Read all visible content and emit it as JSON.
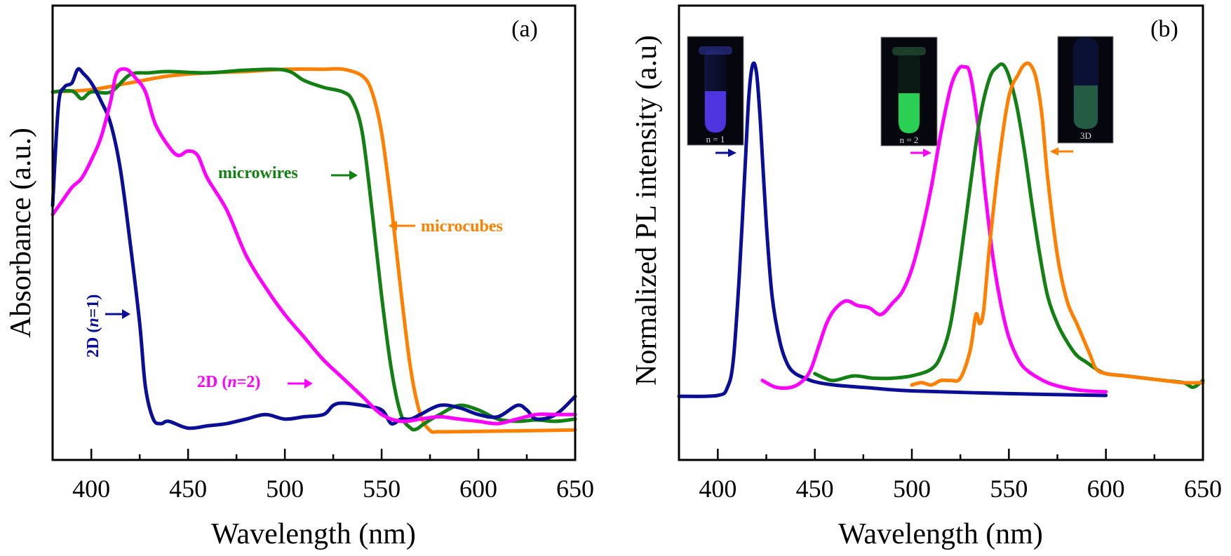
{
  "chart_data": [
    {
      "type": "line",
      "panel_label": "(a)",
      "title": "",
      "xlabel": "Wavelength (nm)",
      "ylabel": "Absorbance (a.u.)",
      "xlim": [
        380,
        650
      ],
      "ylim": [
        0,
        1
      ],
      "xticks": [
        400,
        450,
        500,
        550,
        600,
        650
      ],
      "xticklabels": [
        "400",
        "450",
        "500",
        "550",
        "600",
        "650"
      ],
      "minor_xticks": [
        425,
        475,
        525,
        575,
        625
      ],
      "grid": false,
      "series": [
        {
          "name": "microcubes",
          "color": "#ff8000",
          "x": [
            380,
            400,
            420,
            440,
            460,
            480,
            500,
            520,
            530,
            540,
            545,
            550,
            555,
            560,
            565,
            570,
            575,
            580,
            600,
            620,
            650
          ],
          "y": [
            0.81,
            0.815,
            0.83,
            0.845,
            0.852,
            0.855,
            0.86,
            0.86,
            0.86,
            0.845,
            0.81,
            0.72,
            0.56,
            0.37,
            0.2,
            0.1,
            0.065,
            0.062,
            0.063,
            0.064,
            0.066
          ]
        },
        {
          "name": "microwires",
          "color": "#138013",
          "x": [
            380,
            390,
            395,
            400,
            410,
            420,
            430,
            440,
            460,
            480,
            500,
            510,
            520,
            530,
            535,
            540,
            545,
            550,
            555,
            560,
            565,
            568,
            572,
            580,
            590,
            600,
            610,
            620,
            630,
            640,
            650
          ],
          "y": [
            0.81,
            0.812,
            0.795,
            0.81,
            0.81,
            0.848,
            0.852,
            0.855,
            0.852,
            0.858,
            0.858,
            0.835,
            0.82,
            0.81,
            0.79,
            0.72,
            0.55,
            0.36,
            0.2,
            0.1,
            0.07,
            0.068,
            0.08,
            0.1,
            0.12,
            0.11,
            0.09,
            0.085,
            0.088,
            0.085,
            0.09
          ]
        },
        {
          "name": "2D (n=1)",
          "color": "#0a0f96",
          "x": [
            380,
            383,
            386,
            390,
            393,
            396,
            400,
            405,
            410,
            415,
            420,
            425,
            428,
            432,
            436,
            440,
            450,
            460,
            470,
            480,
            490,
            500,
            510,
            520,
            525,
            530,
            540,
            550,
            555,
            560,
            565,
            570,
            580,
            590,
            600,
            610,
            620,
            625,
            630,
            640,
            650
          ],
          "y": [
            0.56,
            0.78,
            0.82,
            0.83,
            0.86,
            0.85,
            0.83,
            0.79,
            0.74,
            0.64,
            0.48,
            0.3,
            0.16,
            0.09,
            0.08,
            0.085,
            0.07,
            0.075,
            0.08,
            0.09,
            0.1,
            0.09,
            0.095,
            0.1,
            0.12,
            0.125,
            0.12,
            0.11,
            0.08,
            0.09,
            0.09,
            0.1,
            0.12,
            0.115,
            0.1,
            0.095,
            0.12,
            0.11,
            0.09,
            0.1,
            0.14
          ]
        },
        {
          "name": "2D (n=2)",
          "color": "#ff00ff",
          "x": [
            380,
            385,
            390,
            395,
            400,
            405,
            410,
            413,
            418,
            423,
            428,
            433,
            440,
            445,
            450,
            455,
            460,
            470,
            480,
            490,
            500,
            510,
            520,
            530,
            540,
            550,
            560,
            570,
            580,
            590,
            600,
            610,
            620,
            630,
            640,
            650
          ],
          "y": [
            0.54,
            0.57,
            0.6,
            0.62,
            0.66,
            0.71,
            0.79,
            0.85,
            0.86,
            0.84,
            0.81,
            0.74,
            0.69,
            0.67,
            0.68,
            0.67,
            0.62,
            0.55,
            0.45,
            0.38,
            0.32,
            0.27,
            0.22,
            0.18,
            0.14,
            0.1,
            0.085,
            0.09,
            0.095,
            0.09,
            0.085,
            0.08,
            0.09,
            0.1,
            0.1,
            0.1
          ]
        }
      ],
      "annotations": [
        {
          "text": "microwires",
          "color": "#138013",
          "arrow": "right"
        },
        {
          "text": "microcubes",
          "color": "#ff8000",
          "arrow": "left"
        },
        {
          "text_prefix": "2D (",
          "text_italic": "n",
          "text_suffix": "=1)",
          "color": "#0a0f96",
          "arrow": "right",
          "orientation": "vertical"
        },
        {
          "text_prefix": "2D (",
          "text_italic": "n",
          "text_suffix": "=2)",
          "color": "#ff00ff",
          "arrow": "right"
        }
      ]
    },
    {
      "type": "line",
      "panel_label": "(b)",
      "title": "",
      "xlabel": "Wavelength (nm)",
      "ylabel": "Normalized PL intensity (a.u)",
      "xlim": [
        380,
        650
      ],
      "ylim": [
        0,
        1
      ],
      "xticks": [
        400,
        450,
        500,
        550,
        600,
        650
      ],
      "xticklabels": [
        "400",
        "450",
        "500",
        "550",
        "600",
        "650"
      ],
      "minor_xticks": [
        425,
        475,
        525,
        575,
        625
      ],
      "grid": false,
      "series": [
        {
          "name": "2D (n=1)",
          "color": "#0a0f96",
          "x": [
            380,
            400,
            405,
            408,
            411,
            414,
            416,
            418,
            420,
            422,
            425,
            428,
            432,
            436,
            440,
            445,
            450,
            460,
            480,
            500,
            550,
            600
          ],
          "y": [
            0.14,
            0.142,
            0.16,
            0.22,
            0.4,
            0.64,
            0.8,
            0.87,
            0.85,
            0.74,
            0.52,
            0.36,
            0.26,
            0.21,
            0.19,
            0.18,
            0.172,
            0.165,
            0.158,
            0.152,
            0.146,
            0.142
          ]
        },
        {
          "name": "2D (n=2)",
          "color": "#ff00ff",
          "x": [
            423,
            430,
            438,
            444,
            448,
            452,
            456,
            460,
            466,
            472,
            478,
            484,
            490,
            495,
            500,
            505,
            510,
            515,
            520,
            524,
            527,
            530,
            534,
            538,
            542,
            546,
            550,
            555,
            560,
            570,
            580,
            590,
            600
          ],
          "y": [
            0.175,
            0.16,
            0.16,
            0.175,
            0.2,
            0.25,
            0.3,
            0.33,
            0.35,
            0.34,
            0.335,
            0.32,
            0.345,
            0.37,
            0.42,
            0.5,
            0.6,
            0.72,
            0.82,
            0.86,
            0.865,
            0.85,
            0.74,
            0.58,
            0.44,
            0.34,
            0.27,
            0.22,
            0.195,
            0.17,
            0.158,
            0.152,
            0.15
          ]
        },
        {
          "name": "microwires",
          "color": "#138013",
          "x": [
            450,
            455,
            460,
            470,
            480,
            490,
            500,
            510,
            515,
            520,
            525,
            530,
            535,
            540,
            544,
            547,
            550,
            554,
            558,
            562,
            566,
            570,
            575,
            580,
            585,
            590,
            595,
            600,
            610,
            620,
            630,
            640,
            645,
            650
          ],
          "y": [
            0.19,
            0.18,
            0.175,
            0.185,
            0.18,
            0.18,
            0.185,
            0.2,
            0.23,
            0.3,
            0.44,
            0.6,
            0.75,
            0.84,
            0.865,
            0.87,
            0.845,
            0.78,
            0.68,
            0.56,
            0.45,
            0.36,
            0.3,
            0.26,
            0.23,
            0.215,
            0.2,
            0.19,
            0.185,
            0.18,
            0.175,
            0.17,
            0.16,
            0.175
          ]
        },
        {
          "name": "microcubes",
          "color": "#ff8000",
          "x": [
            500,
            505,
            510,
            515,
            520,
            525,
            530,
            533,
            535,
            537,
            540,
            545,
            550,
            555,
            558,
            561,
            564,
            567,
            570,
            575,
            580,
            585,
            588,
            592,
            595,
            600,
            610,
            620,
            630,
            640,
            650
          ],
          "y": [
            0.165,
            0.17,
            0.165,
            0.175,
            0.175,
            0.18,
            0.24,
            0.32,
            0.3,
            0.33,
            0.47,
            0.66,
            0.8,
            0.85,
            0.87,
            0.87,
            0.84,
            0.76,
            0.62,
            0.45,
            0.35,
            0.3,
            0.27,
            0.23,
            0.2,
            0.19,
            0.185,
            0.18,
            0.175,
            0.17,
            0.17
          ]
        }
      ],
      "insets": [
        {
          "caption": "n = 1",
          "liquid_color": "#5a3cff",
          "arrow_color": "#0a0f96",
          "arrow": "right"
        },
        {
          "caption": "n = 2",
          "liquid_color": "#2fe35a",
          "arrow_color": "#ff00ff",
          "arrow": "right"
        },
        {
          "caption": "3D",
          "liquid_color": "#2f7a4a",
          "arrow_color": "#ff8000",
          "arrow": "left"
        }
      ]
    }
  ]
}
